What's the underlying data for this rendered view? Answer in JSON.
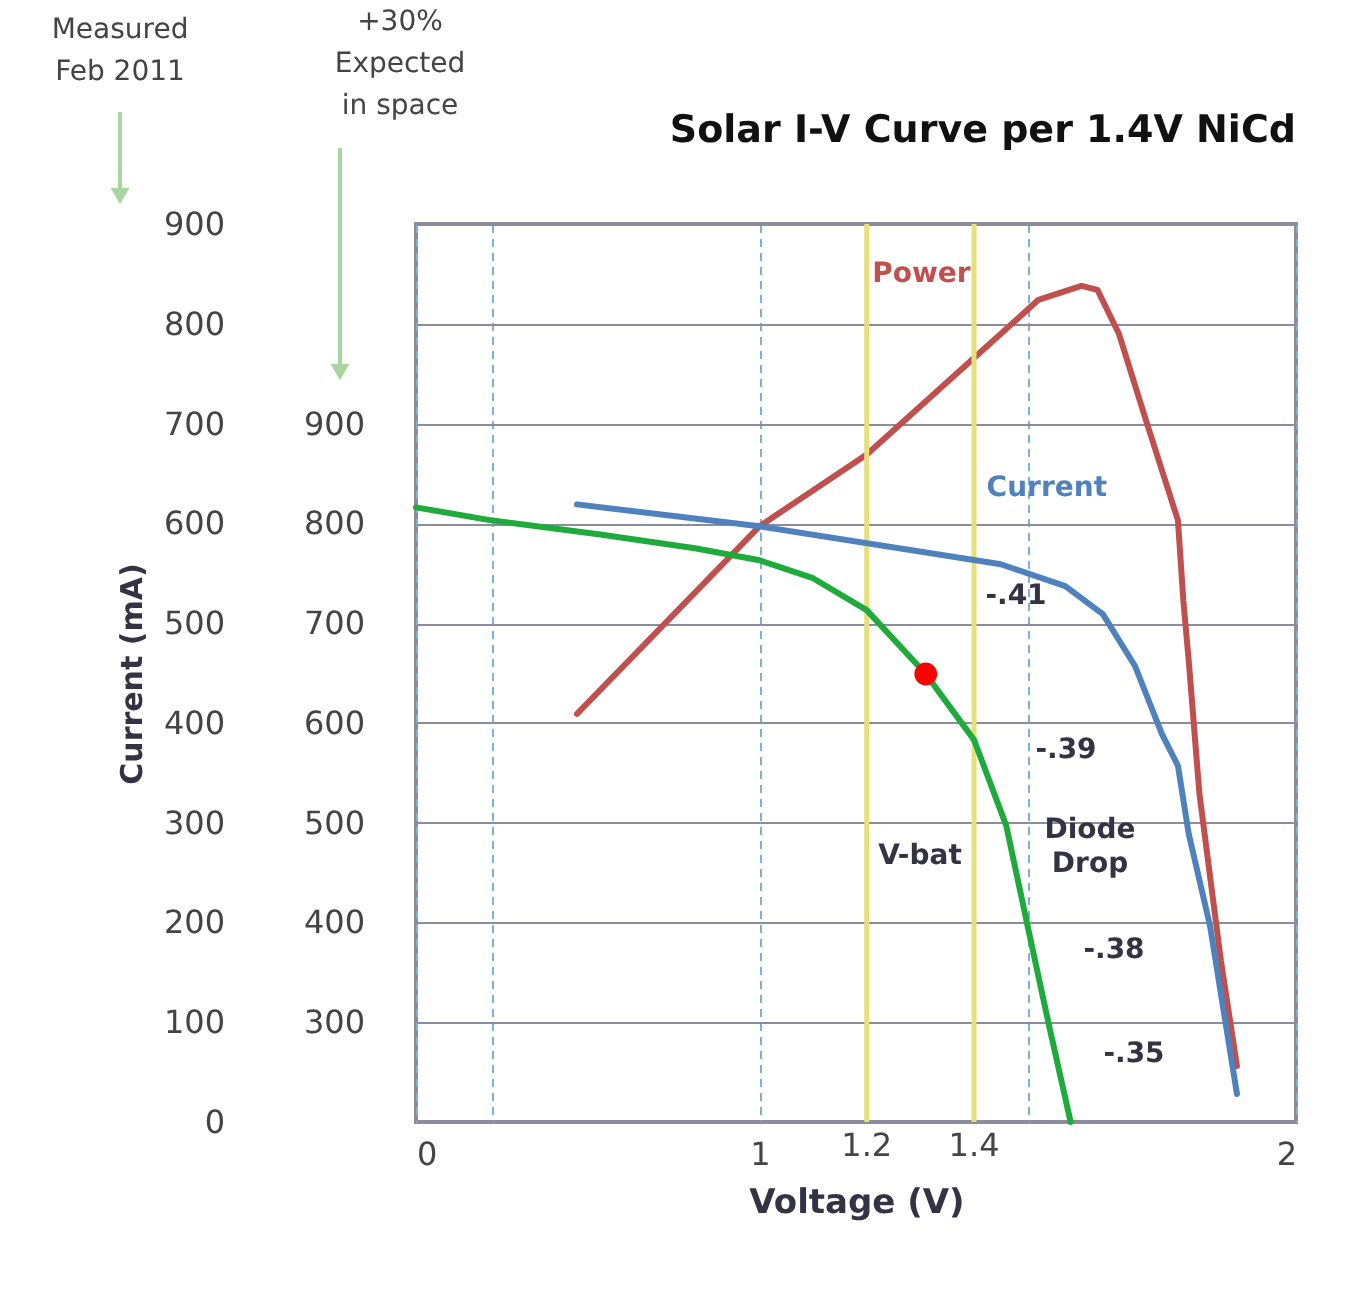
{
  "chart_data": {
    "type": "line",
    "title": "Solar I-V Curve per 1.4V NiCd",
    "xlabel": "Voltage (V)",
    "ylabel": "Current (mA)",
    "xlim": [
      0.36,
      2
    ],
    "xticks": [
      {
        "value": 0.36,
        "label": "0"
      },
      {
        "value": 0.5,
        "label": null
      },
      1,
      {
        "value": 1.5,
        "label": null
      },
      2
    ],
    "ylim": [
      0,
      900
    ],
    "yticks": [
      0,
      100,
      200,
      300,
      400,
      500,
      600,
      700,
      800,
      900
    ],
    "y2lim": [
      200,
      1100
    ],
    "y2ticks": [
      300,
      400,
      500,
      600,
      700,
      800,
      900
    ],
    "grid": true,
    "marker": "none",
    "series": [
      {
        "name": "Power",
        "color": "#c0504d",
        "x": [
          0.66,
          1.0,
          1.2,
          1.45,
          1.52,
          1.6,
          1.63,
          1.67,
          1.72,
          1.78,
          1.79,
          1.8,
          1.82,
          1.86,
          1.89
        ],
        "values": [
          409,
          597,
          669,
          790,
          824,
          838,
          834,
          790,
          704,
          603,
          523,
          463,
          329,
          162,
          56
        ]
      },
      {
        "name": "Current",
        "color": "#4f81bd",
        "x": [
          0.66,
          1.0,
          1.45,
          1.57,
          1.64,
          1.7,
          1.75,
          1.78,
          1.8,
          1.84,
          1.89
        ],
        "values": [
          619,
          597,
          559,
          537,
          509,
          457,
          389,
          357,
          289,
          196,
          28
        ]
      },
      {
        "color": "#1faa3c",
        "x": [
          0.36,
          0.5,
          0.7,
          0.88,
          1.0,
          1.1,
          1.2,
          1.31,
          1.4,
          1.46,
          1.5,
          1.54,
          1.58
        ],
        "values": [
          616,
          603,
          589,
          575,
          563,
          545,
          513,
          449,
          383,
          297,
          196,
          96,
          0
        ]
      },
      {
        "type": "scatter",
        "marker": "circle",
        "color": "#ff0000",
        "x": [
          1.31
        ],
        "values": [
          449
        ]
      }
    ],
    "ref_lines": [
      {
        "axis": "x",
        "value": 1.2,
        "label": "1.2",
        "color": "#e6e07a"
      },
      {
        "axis": "x",
        "value": 1.4,
        "label": "1.4",
        "color": "#e6e07a"
      }
    ],
    "annotations": [
      "Measured\nFeb 2011",
      "+30%\nExpected\nin space",
      "V-bat",
      "Diode\nDrop",
      "-.41",
      "-.39",
      "-.38",
      "-.35"
    ]
  }
}
